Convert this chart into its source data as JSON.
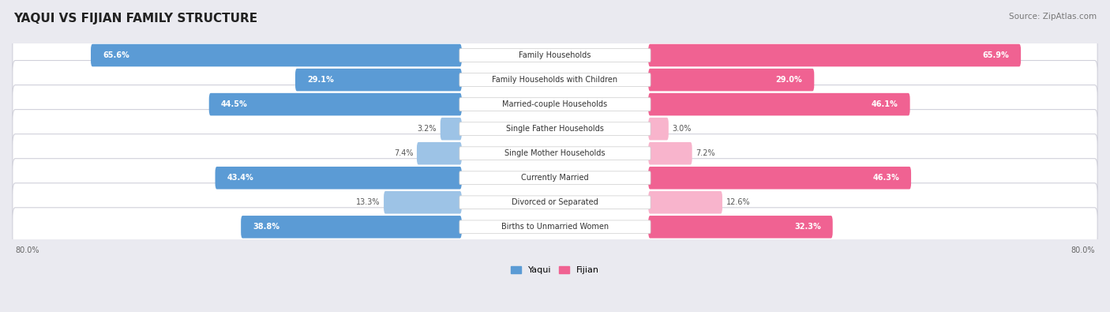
{
  "title": "YAQUI VS FIJIAN FAMILY STRUCTURE",
  "source": "Source: ZipAtlas.com",
  "categories": [
    "Family Households",
    "Family Households with Children",
    "Married-couple Households",
    "Single Father Households",
    "Single Mother Households",
    "Currently Married",
    "Divorced or Separated",
    "Births to Unmarried Women"
  ],
  "yaqui_values": [
    65.6,
    29.1,
    44.5,
    3.2,
    7.4,
    43.4,
    13.3,
    38.8
  ],
  "fijian_values": [
    65.9,
    29.0,
    46.1,
    3.0,
    7.2,
    46.3,
    12.6,
    32.3
  ],
  "x_max": 80.0,
  "yaqui_color_strong": "#5b9bd5",
  "yaqui_color_weak": "#9dc3e6",
  "fijian_color_strong": "#f06292",
  "fijian_color_weak": "#f8b4cc",
  "row_bg_color_odd": "#f5f5f8",
  "row_bg_color_even": "#eaeaf0",
  "fig_bg_color": "#eaeaf0",
  "title_fontsize": 11,
  "source_fontsize": 7.5,
  "label_fontsize": 7,
  "value_fontsize": 7,
  "legend_fontsize": 8,
  "axis_label_fontsize": 7,
  "strong_threshold": 20
}
